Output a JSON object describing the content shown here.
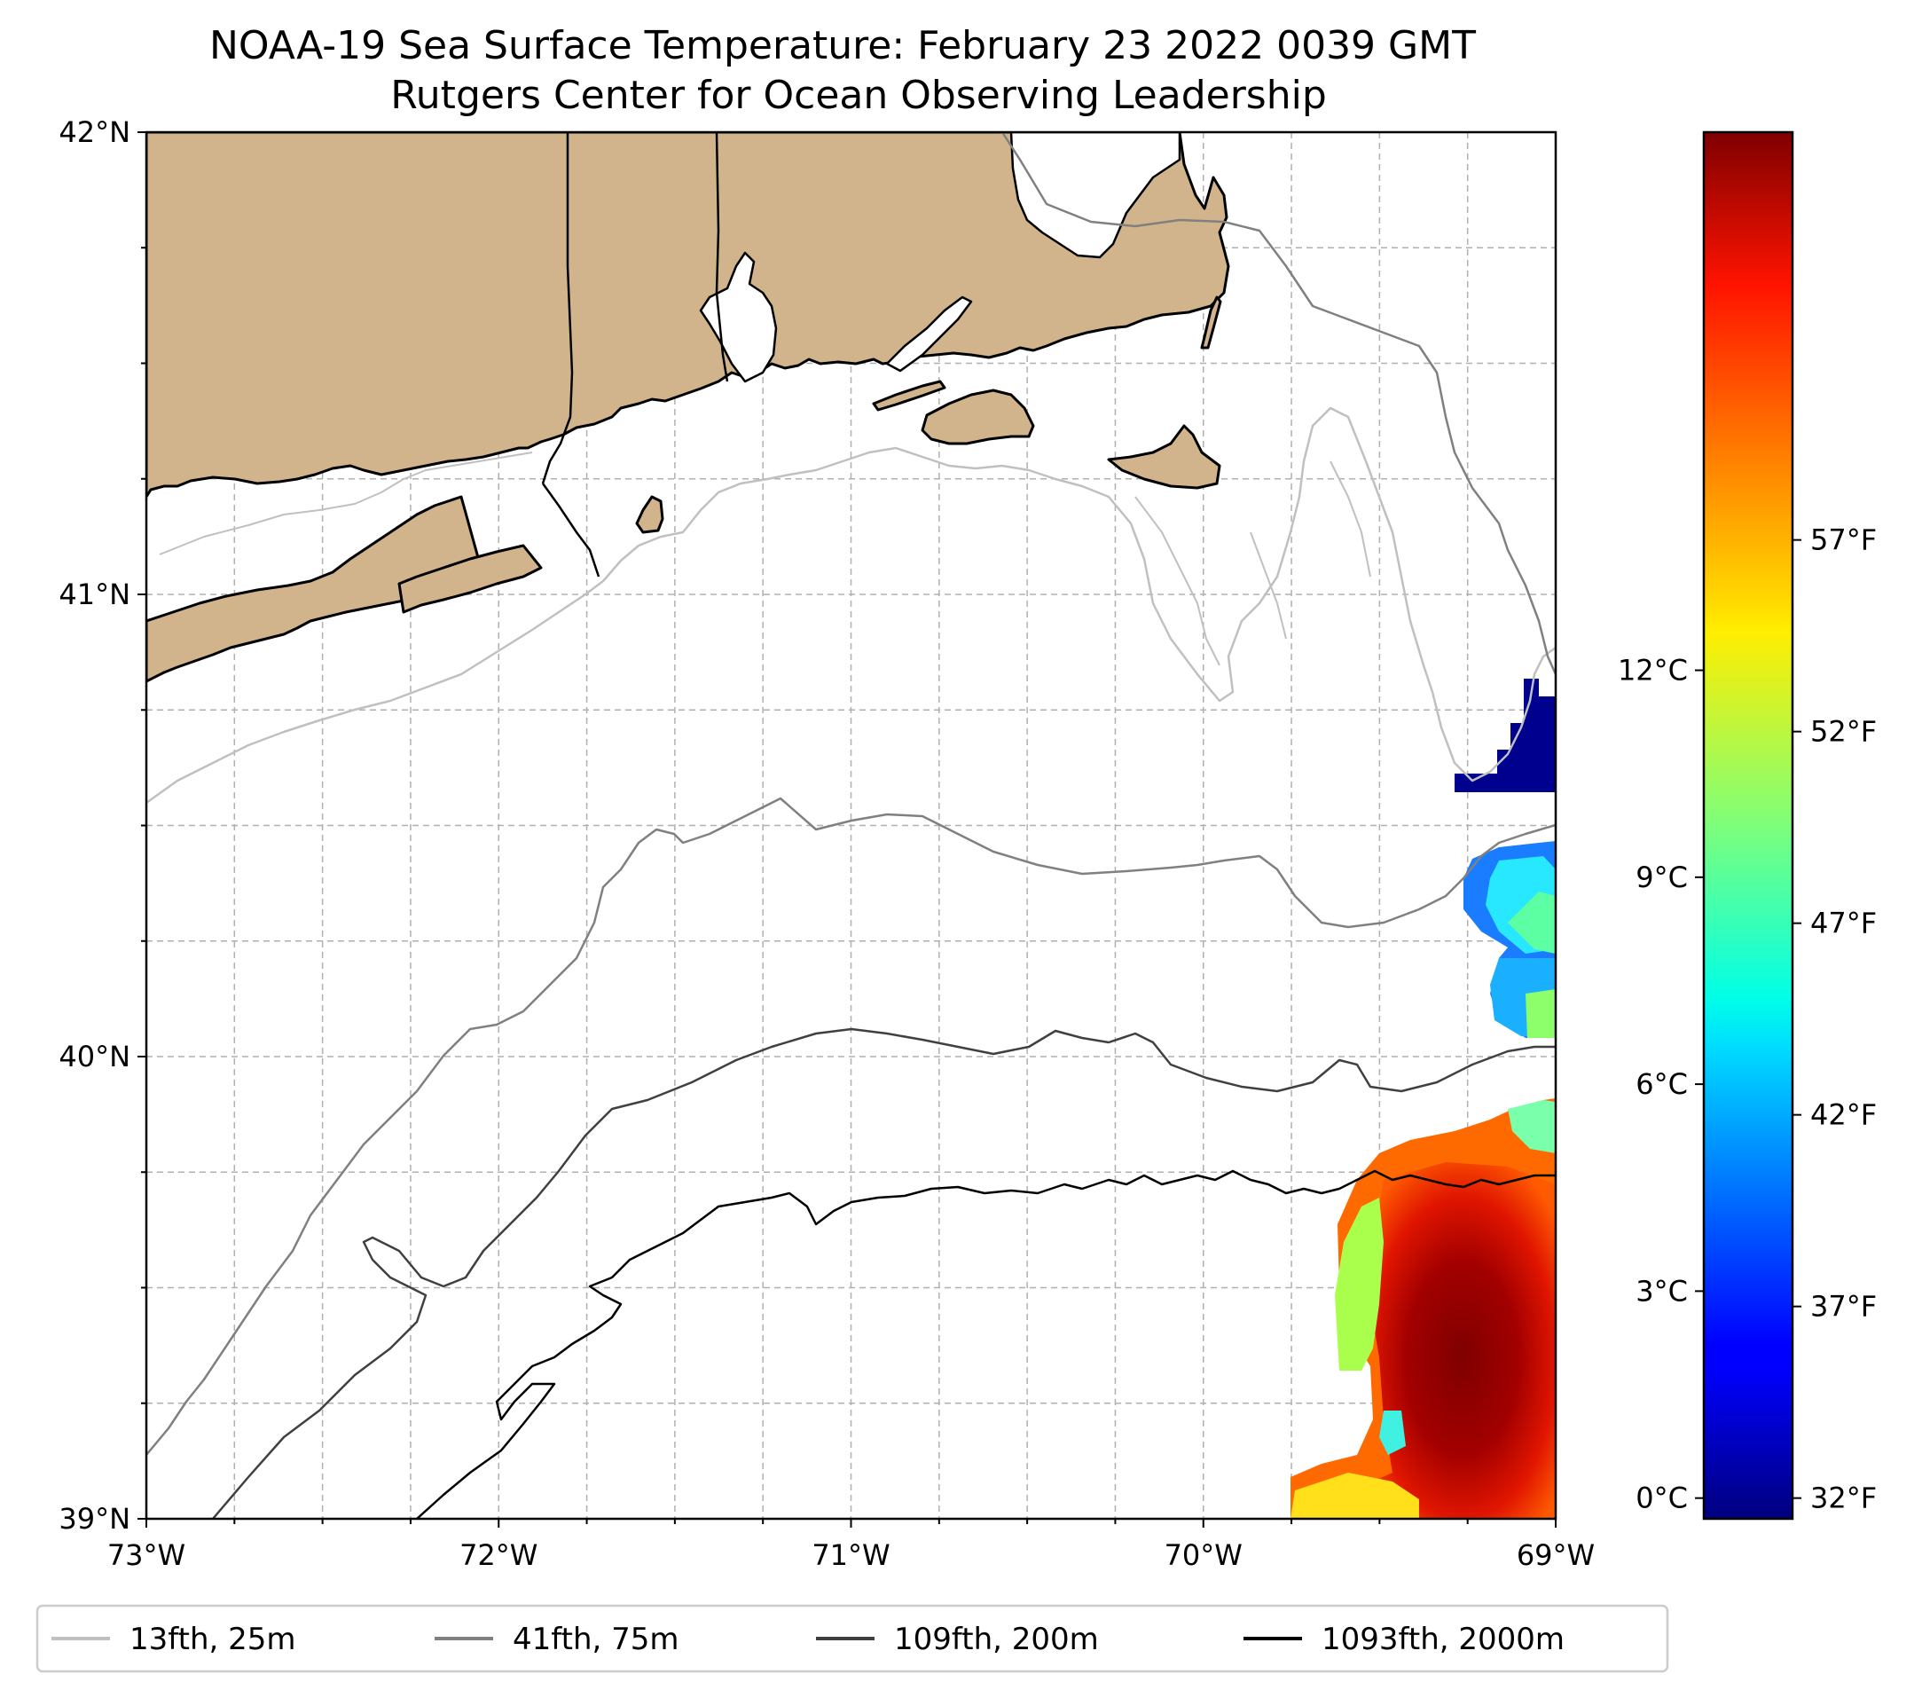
{
  "title": {
    "line1": "NOAA-19 Sea Surface Temperature: February 23 2022 0039 GMT",
    "line2": "Rutgers Center for Ocean Observing Leadership"
  },
  "map": {
    "lon_range": [
      -73,
      -69
    ],
    "lat_range": [
      39,
      42
    ],
    "x_ticks": [
      "73°W",
      "72°W",
      "71°W",
      "70°W",
      "69°W"
    ],
    "y_ticks": [
      "42°N",
      "41°N",
      "40°N",
      "39°N"
    ],
    "grid": true,
    "land_color": "#d2b48c"
  },
  "colorbar": {
    "colormap": "jet",
    "range_c": [
      -0.3,
      19.8
    ],
    "celsius_ticks": [
      {
        "value": 0,
        "label": "0°C"
      },
      {
        "value": 3,
        "label": "3°C"
      },
      {
        "value": 6,
        "label": "6°C"
      },
      {
        "value": 9,
        "label": "9°C"
      },
      {
        "value": 12,
        "label": "12°C"
      }
    ],
    "fahrenheit_ticks": [
      {
        "value": 32,
        "label": "32°F"
      },
      {
        "value": 37,
        "label": "37°F"
      },
      {
        "value": 42,
        "label": "42°F"
      },
      {
        "value": 47,
        "label": "47°F"
      },
      {
        "value": 52,
        "label": "52°F"
      },
      {
        "value": 57,
        "label": "57°F"
      }
    ]
  },
  "legend": {
    "placement": "bottom",
    "items": [
      {
        "label": "13fth, 25m",
        "color": "#c0c0c0"
      },
      {
        "label": "41fth, 75m",
        "color": "#808080"
      },
      {
        "label": "109fth, 200m",
        "color": "#404040"
      },
      {
        "label": "1093fth, 2000m",
        "color": "#000000"
      }
    ]
  }
}
